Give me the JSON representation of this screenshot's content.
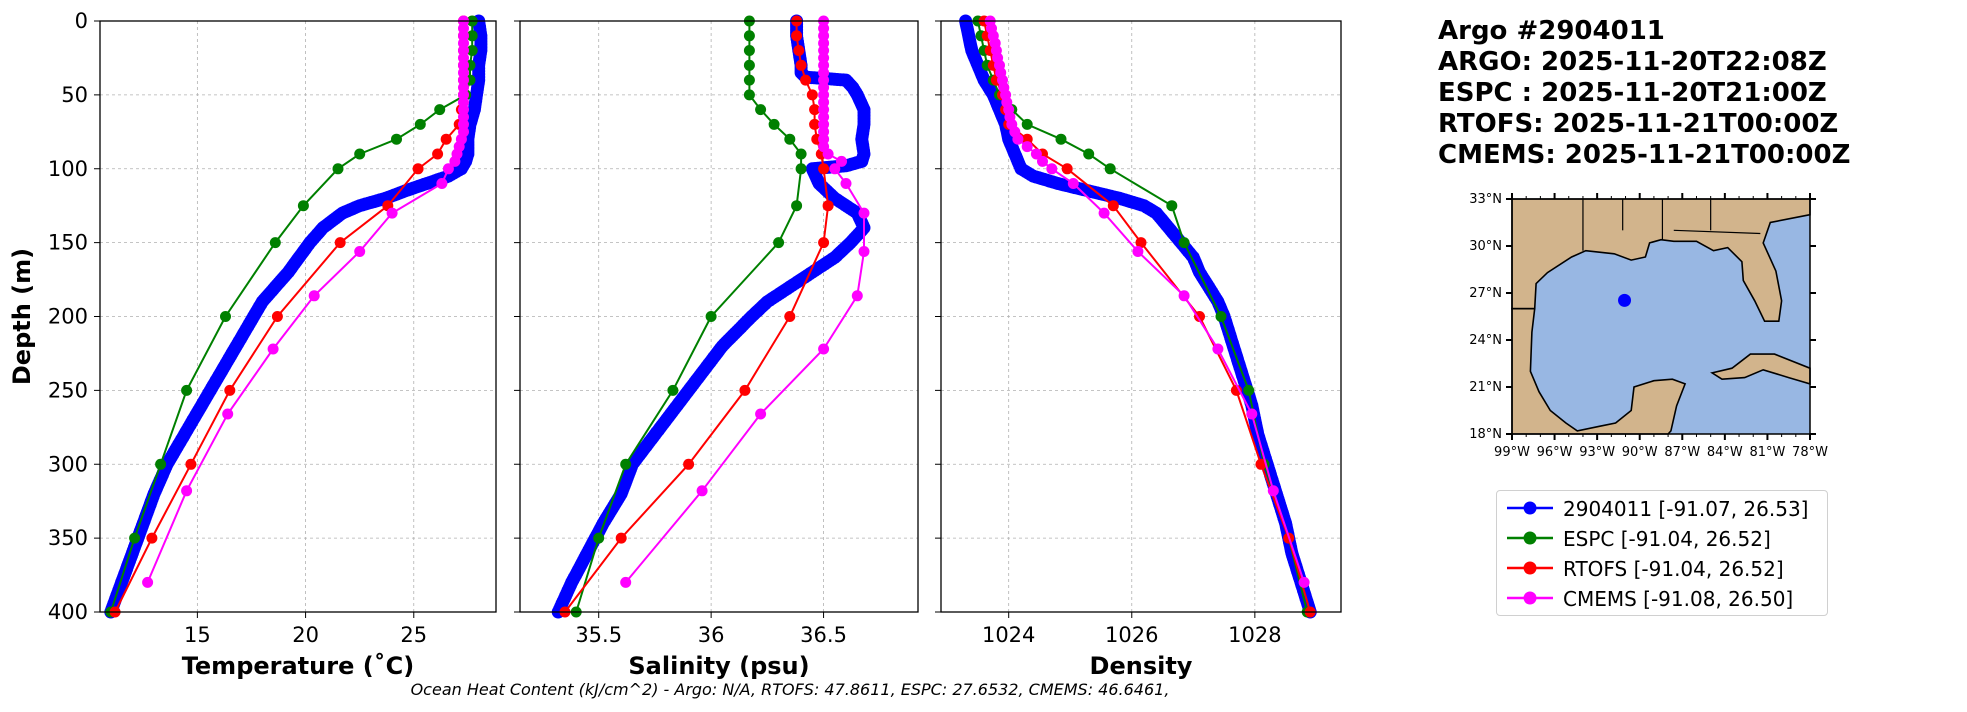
{
  "header": {
    "lines": [
      "Argo #2904011",
      "ARGO: 2025-11-20T22:08Z",
      "ESPC : 2025-11-20T21:00Z",
      "RTOFS: 2025-11-21T00:00Z",
      "CMEMS: 2025-11-21T00:00Z"
    ]
  },
  "footer": "Ocean Heat Content (kJ/cm^2) - Argo: N/A,  RTOFS: 47.8611,  ESPC: 27.6532,  CMEMS: 46.6461,",
  "legend": [
    {
      "label": "2904011 [-91.07, 26.53]",
      "color": "#0000ff"
    },
    {
      "label": "ESPC [-91.04, 26.52]",
      "color": "#008000"
    },
    {
      "label": "RTOFS [-91.04, 26.52]",
      "color": "#ff0000"
    },
    {
      "label": "CMEMS [-91.08, 26.50]",
      "color": "#ff00ff"
    }
  ],
  "chart_data": [
    {
      "type": "line",
      "title": "",
      "xlabel": "Temperature (˚C)",
      "ylabel": "Depth (m)",
      "xlim": [
        10.5,
        28.8
      ],
      "ylim": [
        400,
        0
      ],
      "xticks": [
        15,
        20,
        25
      ],
      "yticks": [
        0,
        50,
        100,
        150,
        200,
        250,
        300,
        350,
        400
      ],
      "grid": true,
      "series": [
        {
          "name": "2904011",
          "color": "#0000ff",
          "dense": true,
          "depth": [
            0,
            10,
            20,
            30,
            40,
            50,
            60,
            70,
            80,
            90,
            95,
            100,
            105,
            110,
            115,
            120,
            125,
            130,
            140,
            150,
            160,
            170,
            180,
            190,
            200,
            210,
            220,
            230,
            240,
            250,
            260,
            270,
            280,
            290,
            300,
            320,
            340,
            360,
            380,
            400
          ],
          "values": [
            28.0,
            28.1,
            28.1,
            28.0,
            28.0,
            27.9,
            27.8,
            27.6,
            27.5,
            27.5,
            27.4,
            27.2,
            26.6,
            25.6,
            24.6,
            23.7,
            22.5,
            21.7,
            20.8,
            20.2,
            19.7,
            19.2,
            18.6,
            18.0,
            17.6,
            17.2,
            16.8,
            16.4,
            16.0,
            15.6,
            15.2,
            14.8,
            14.4,
            14.0,
            13.6,
            13.0,
            12.5,
            12.0,
            11.5,
            11.0
          ]
        },
        {
          "name": "ESPC",
          "color": "#008000",
          "depth": [
            0,
            10,
            20,
            30,
            40,
            50,
            60,
            70,
            80,
            90,
            100,
            125,
            150,
            200,
            250,
            300,
            350,
            400
          ],
          "values": [
            27.7,
            27.7,
            27.7,
            27.6,
            27.6,
            27.4,
            26.2,
            25.3,
            24.2,
            22.5,
            21.5,
            19.9,
            18.6,
            16.3,
            14.5,
            13.3,
            12.1,
            11.0
          ]
        },
        {
          "name": "RTOFS",
          "color": "#ff0000",
          "depth": [
            0,
            10,
            20,
            30,
            40,
            50,
            60,
            70,
            80,
            90,
            100,
            125,
            150,
            200,
            250,
            300,
            350,
            400
          ],
          "values": [
            27.3,
            27.3,
            27.3,
            27.3,
            27.3,
            27.3,
            27.2,
            27.1,
            26.5,
            26.1,
            25.2,
            23.8,
            21.6,
            18.7,
            16.5,
            14.7,
            12.9,
            11.2
          ]
        },
        {
          "name": "CMEMS",
          "color": "#ff00ff",
          "depth": [
            0,
            5,
            10,
            15,
            20,
            25,
            30,
            35,
            40,
            45,
            50,
            55,
            60,
            65,
            70,
            75,
            80,
            85,
            90,
            95,
            100,
            110,
            130,
            156,
            186,
            222,
            266,
            318,
            380
          ],
          "values": [
            27.3,
            27.3,
            27.3,
            27.3,
            27.3,
            27.3,
            27.3,
            27.3,
            27.3,
            27.3,
            27.3,
            27.3,
            27.3,
            27.3,
            27.3,
            27.3,
            27.2,
            27.1,
            27.0,
            26.9,
            26.6,
            26.3,
            24.0,
            22.5,
            20.4,
            18.5,
            16.4,
            14.5,
            12.7
          ]
        }
      ]
    },
    {
      "type": "line",
      "title": "",
      "xlabel": "Salinity (psu)",
      "ylabel": "",
      "xlim": [
        35.15,
        36.92
      ],
      "ylim": [
        400,
        0
      ],
      "xticks": [
        35.5,
        36.0,
        36.5
      ],
      "yticks": [
        0,
        50,
        100,
        150,
        200,
        250,
        300,
        350,
        400
      ],
      "grid": true,
      "series": [
        {
          "name": "2904011",
          "color": "#0000ff",
          "dense": true,
          "depth": [
            0,
            10,
            20,
            30,
            35,
            38,
            40,
            45,
            50,
            60,
            70,
            80,
            90,
            95,
            98,
            100,
            110,
            120,
            130,
            140,
            150,
            160,
            170,
            180,
            190,
            200,
            220,
            240,
            260,
            280,
            300,
            320,
            340,
            360,
            380,
            400
          ],
          "values": [
            36.38,
            36.38,
            36.39,
            36.4,
            36.4,
            36.42,
            36.6,
            36.63,
            36.65,
            36.68,
            36.68,
            36.67,
            36.68,
            36.67,
            36.6,
            36.45,
            36.48,
            36.55,
            36.65,
            36.68,
            36.62,
            36.55,
            36.45,
            36.35,
            36.25,
            36.18,
            36.05,
            35.95,
            35.85,
            35.75,
            35.65,
            35.6,
            35.52,
            35.45,
            35.38,
            35.32
          ]
        },
        {
          "name": "ESPC",
          "color": "#008000",
          "depth": [
            0,
            10,
            20,
            30,
            40,
            50,
            60,
            70,
            80,
            90,
            100,
            125,
            150,
            200,
            250,
            300,
            350,
            400
          ],
          "values": [
            36.17,
            36.17,
            36.17,
            36.17,
            36.17,
            36.17,
            36.22,
            36.28,
            36.35,
            36.4,
            36.4,
            36.38,
            36.3,
            36.0,
            35.83,
            35.62,
            35.5,
            35.4
          ]
        },
        {
          "name": "RTOFS",
          "color": "#ff0000",
          "depth": [
            0,
            10,
            20,
            30,
            40,
            50,
            60,
            70,
            80,
            90,
            100,
            125,
            150,
            200,
            250,
            300,
            350,
            400
          ],
          "values": [
            36.38,
            36.38,
            36.39,
            36.4,
            36.42,
            36.45,
            36.46,
            36.46,
            36.47,
            36.49,
            36.5,
            36.52,
            36.5,
            36.35,
            36.15,
            35.9,
            35.6,
            35.35
          ]
        },
        {
          "name": "CMEMS",
          "color": "#ff00ff",
          "depth": [
            0,
            5,
            10,
            15,
            20,
            25,
            30,
            35,
            40,
            45,
            50,
            55,
            60,
            65,
            70,
            75,
            80,
            85,
            90,
            95,
            100,
            110,
            130,
            156,
            186,
            222,
            266,
            318,
            380
          ],
          "values": [
            36.5,
            36.5,
            36.5,
            36.5,
            36.5,
            36.5,
            36.5,
            36.5,
            36.5,
            36.5,
            36.5,
            36.5,
            36.5,
            36.5,
            36.5,
            36.5,
            36.5,
            36.5,
            36.52,
            36.58,
            36.55,
            36.6,
            36.68,
            36.68,
            36.65,
            36.5,
            36.22,
            35.96,
            35.62
          ]
        }
      ]
    },
    {
      "type": "line",
      "title": "",
      "xlabel": "Density",
      "ylabel": "",
      "xlim": [
        1022.9,
        1029.4
      ],
      "ylim": [
        400,
        0
      ],
      "xticks": [
        1024,
        1026,
        1028
      ],
      "yticks": [
        0,
        50,
        100,
        150,
        200,
        250,
        300,
        350,
        400
      ],
      "grid": true,
      "series": [
        {
          "name": "2904011",
          "color": "#0000ff",
          "dense": true,
          "depth": [
            0,
            10,
            20,
            30,
            40,
            50,
            60,
            70,
            80,
            90,
            100,
            105,
            110,
            115,
            120,
            125,
            130,
            140,
            150,
            160,
            170,
            180,
            190,
            200,
            220,
            240,
            260,
            280,
            300,
            320,
            340,
            360,
            380,
            400
          ],
          "values": [
            1023.3,
            1023.35,
            1023.4,
            1023.5,
            1023.6,
            1023.75,
            1023.85,
            1023.95,
            1024.0,
            1024.1,
            1024.2,
            1024.4,
            1024.8,
            1025.3,
            1025.8,
            1026.2,
            1026.4,
            1026.6,
            1026.8,
            1027.0,
            1027.1,
            1027.25,
            1027.4,
            1027.5,
            1027.65,
            1027.8,
            1027.95,
            1028.05,
            1028.2,
            1028.35,
            1028.5,
            1028.6,
            1028.75,
            1028.9
          ]
        },
        {
          "name": "ESPC",
          "color": "#008000",
          "depth": [
            0,
            10,
            20,
            30,
            40,
            50,
            60,
            70,
            80,
            90,
            100,
            125,
            150,
            200,
            250,
            300,
            350,
            400
          ],
          "values": [
            1023.5,
            1023.55,
            1023.6,
            1023.65,
            1023.75,
            1023.85,
            1024.05,
            1024.3,
            1024.85,
            1025.3,
            1025.65,
            1026.65,
            1026.85,
            1027.45,
            1027.9,
            1028.15,
            1028.55,
            1028.85
          ]
        },
        {
          "name": "RTOFS",
          "color": "#ff0000",
          "depth": [
            0,
            10,
            20,
            30,
            40,
            50,
            60,
            70,
            80,
            90,
            100,
            125,
            150,
            200,
            250,
            300,
            350,
            400
          ],
          "values": [
            1023.6,
            1023.65,
            1023.7,
            1023.75,
            1023.8,
            1023.9,
            1023.95,
            1024.0,
            1024.3,
            1024.55,
            1024.95,
            1025.7,
            1026.15,
            1027.1,
            1027.7,
            1028.1,
            1028.55,
            1028.9
          ]
        },
        {
          "name": "CMEMS",
          "color": "#ff00ff",
          "depth": [
            0,
            5,
            10,
            15,
            20,
            25,
            30,
            35,
            40,
            45,
            50,
            55,
            60,
            65,
            70,
            75,
            80,
            85,
            90,
            95,
            100,
            110,
            130,
            156,
            186,
            222,
            266,
            318,
            380
          ],
          "values": [
            1023.7,
            1023.72,
            1023.75,
            1023.78,
            1023.8,
            1023.82,
            1023.85,
            1023.87,
            1023.9,
            1023.92,
            1023.95,
            1023.97,
            1024.0,
            1024.02,
            1024.05,
            1024.1,
            1024.15,
            1024.3,
            1024.45,
            1024.55,
            1024.7,
            1025.05,
            1025.55,
            1026.1,
            1026.85,
            1027.4,
            1027.95,
            1028.3,
            1028.8
          ]
        }
      ]
    },
    {
      "type": "map",
      "region": "Gulf of Mexico",
      "lon_ticks": [
        "99°W",
        "96°W",
        "93°W",
        "90°W",
        "87°W",
        "84°W",
        "81°W",
        "78°W"
      ],
      "lat_ticks": [
        "33°N",
        "30°N",
        "27°N",
        "24°N",
        "21°N",
        "18°N"
      ],
      "lon_range": [
        -99,
        -78
      ],
      "lat_range": [
        18,
        33
      ],
      "marker": {
        "lon": -91.07,
        "lat": 26.53,
        "color": "#0000ff"
      },
      "land_color": "#d2b48c",
      "water_color": "#98b7e3"
    }
  ]
}
